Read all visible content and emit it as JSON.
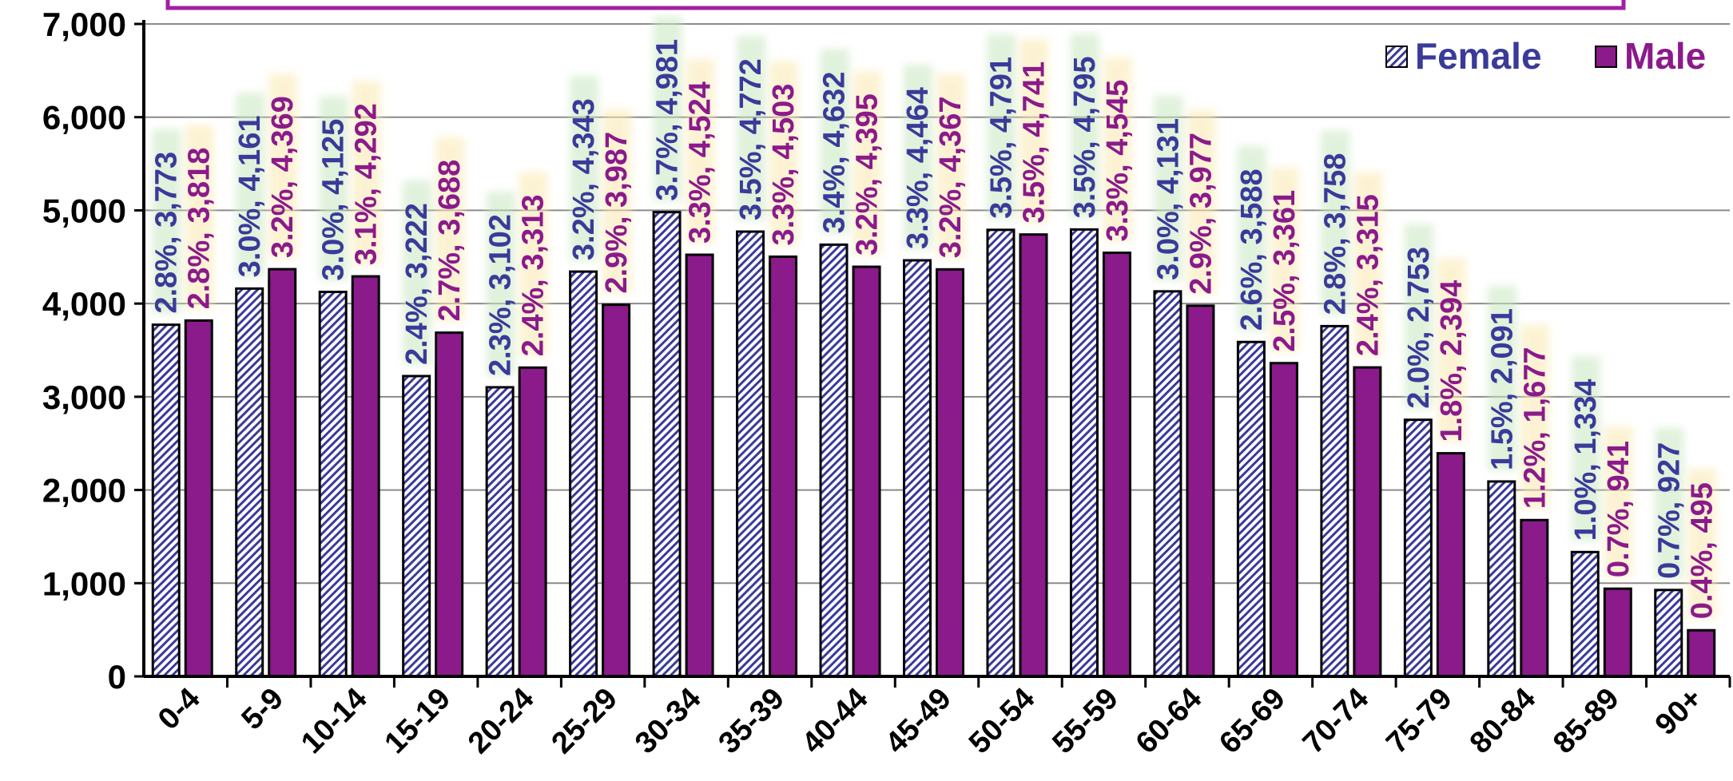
{
  "chart_data": {
    "type": "bar",
    "title": "",
    "xlabel": "",
    "ylabel": "",
    "ylim": [
      0,
      7000
    ],
    "yticks": [
      0,
      1000,
      2000,
      3000,
      4000,
      5000,
      6000,
      7000
    ],
    "ytick_labels": [
      "0",
      "1,000",
      "2,000",
      "3,000",
      "4,000",
      "5,000",
      "6,000",
      "7,000"
    ],
    "grid": true,
    "legend_position": "top-right",
    "categories": [
      "0-4",
      "5-9",
      "10-14",
      "15-19",
      "20-24",
      "25-29",
      "30-34",
      "35-39",
      "40-44",
      "45-49",
      "50-54",
      "55-59",
      "60-64",
      "65-69",
      "70-74",
      "75-79",
      "80-84",
      "85-89",
      "90+"
    ],
    "series": [
      {
        "name": "Female",
        "color": "#3a3a9a",
        "values": [
          3773,
          4161,
          4125,
          3222,
          3102,
          4343,
          4981,
          4772,
          4632,
          4464,
          4791,
          4795,
          4131,
          3588,
          3758,
          2753,
          2091,
          1334,
          927
        ],
        "data_labels": [
          "2.8%, 3,773",
          "3.0%, 4,161",
          "3.0%, 4,125",
          "2.4%, 3,222",
          "2.3%, 3,102",
          "3.2%, 4,343",
          "3.7%, 4,981",
          "3.5%, 4,772",
          "3.4%, 4,632",
          "3.3%, 4,464",
          "3.5%, 4,791",
          "3.5%, 4,795",
          "3.0%, 4,131",
          "2.6%, 3,588",
          "2.8%, 3,758",
          "2.0%, 2,753",
          "1.5%, 2,091",
          "1.0%, 1,334",
          "0.7%, 927"
        ]
      },
      {
        "name": "Male",
        "color": "#8b1a8b",
        "values": [
          3818,
          4369,
          4292,
          3688,
          3313,
          3987,
          4524,
          4503,
          4395,
          4367,
          4741,
          4545,
          3977,
          3361,
          3315,
          2394,
          1677,
          941,
          495
        ],
        "data_labels": [
          "2.8%, 3,818",
          "3.2%, 4,369",
          "3.1%, 4,292",
          "2.7%, 3,688",
          "2.4%, 3,313",
          "2.9%, 3,987",
          "3.3%, 4,524",
          "3.3%, 4,503",
          "3.2%, 4,395",
          "3.2%, 4,367",
          "3.5%, 4,741",
          "3.3%, 4,545",
          "2.9%, 3,977",
          "2.5%, 3,361",
          "2.4%, 3,315",
          "1.8%, 2,394",
          "1.2%, 1,677",
          "0.7%, 941",
          "0.4%, 495"
        ]
      }
    ]
  },
  "colors": {
    "female_text": "#3a3a9a",
    "male_text": "#8b1a8b",
    "male_bar": "#8b1a8b",
    "female_hatch": "#3a3a9a",
    "frame_border": "#a020a0",
    "female_label_glow": "#c8e6c0",
    "male_label_glow": "#fbe9b0"
  }
}
